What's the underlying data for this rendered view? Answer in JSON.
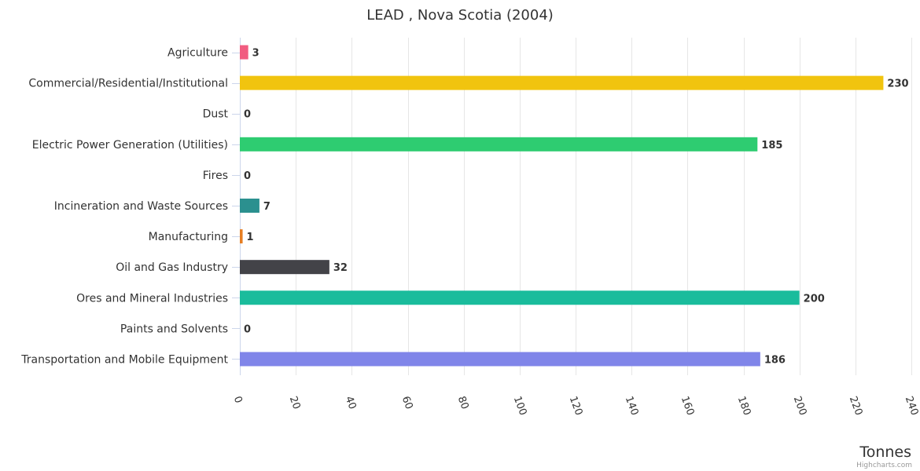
{
  "chart_data": {
    "type": "bar",
    "orientation": "horizontal",
    "title": "LEAD , Nova Scotia (2004)",
    "xlabel": "",
    "ylabel": "Tonnes",
    "categories": [
      "Agriculture",
      "Commercial/Residential/Institutional",
      "Dust",
      "Electric Power Generation (Utilities)",
      "Fires",
      "Incineration and Waste Sources",
      "Manufacturing",
      "Oil and Gas Industry",
      "Ores and Mineral Industries",
      "Paints and Solvents",
      "Transportation and Mobile Equipment"
    ],
    "values": [
      3,
      230,
      0,
      185,
      0,
      7,
      1,
      32,
      200,
      0,
      186
    ],
    "colors": [
      "#f15c80",
      "#f1c40f",
      "#2b908f",
      "#2ecc71",
      "#7cb5ec",
      "#2b908f",
      "#e67e22",
      "#434348",
      "#1abc9c",
      "#90ed7d",
      "#8085e9"
    ],
    "value_axis": {
      "min": 0,
      "max": 240,
      "ticks": [
        0,
        20,
        40,
        60,
        80,
        100,
        120,
        140,
        160,
        180,
        200,
        220,
        240
      ],
      "grid": true
    },
    "data_labels": true,
    "legend": "none",
    "credits": "Highcharts.com"
  }
}
